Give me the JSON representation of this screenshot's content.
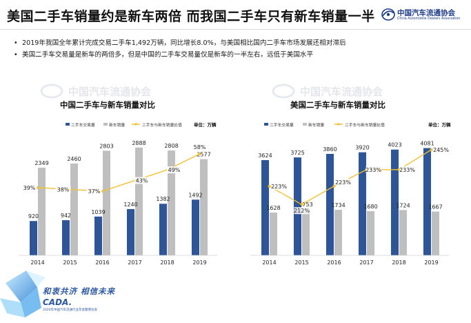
{
  "header": {
    "title": "美国二手车销量约是新车两倍 而我国二手车只有新车销量一半",
    "logo_text": "中国汽车流通协会",
    "logo_subtext": "China Automobile Dealers Association"
  },
  "bullets": [
    "2019年我国全年累计完成交易二手车1,492万辆，同比增长8.0%，与美国相比国内二手车市场发展还相对滞后",
    "美国二手车交易量是新车的两倍多，但是中国的二手车交易量仅是新车的一半左右，远低于美国水平"
  ],
  "watermark": {
    "text": "中国汽车流通协会",
    "subtext": "China Automobile Dealers Association"
  },
  "footer": {
    "slogan": "和衷共济 相信未来",
    "brand": "CADA.",
    "event": "2020年中国汽车流通行业年会暨博览会"
  },
  "colors": {
    "used": "#2e5597",
    "new": "#bfbfbf",
    "ratio": "#f0c030",
    "accent_footer": "#2b57a0"
  },
  "chart_data": [
    {
      "type": "bar",
      "title": "中国二手车与新车销量对比",
      "unit_label": "单位：万辆",
      "legend_position": "top",
      "categories": [
        "2014",
        "2015",
        "2016",
        "2017",
        "2018",
        "2019"
      ],
      "series": [
        {
          "name": "二手车交易量",
          "kind": "bar",
          "values": [
            920,
            942,
            1039,
            1240,
            1382,
            1492
          ],
          "labels": [
            "920",
            "942",
            "1039",
            "1240",
            "1382",
            "1492"
          ]
        },
        {
          "name": "新车销量",
          "kind": "bar",
          "values": [
            2349,
            2460,
            2803,
            2888,
            2808,
            2577
          ],
          "labels": [
            "2349",
            "2460",
            "2803",
            "2888",
            "2808",
            "2577"
          ]
        },
        {
          "name": "二手车与新车销量比值",
          "kind": "line",
          "values": [
            39,
            38,
            37,
            43,
            49,
            58
          ],
          "labels": [
            "39%",
            "38%",
            "37%",
            "43%",
            "49%",
            "58%"
          ]
        }
      ],
      "grid": false
    },
    {
      "type": "bar",
      "title": "美国二手车与新车销量对比",
      "unit_label": "单位：万辆",
      "legend_position": "top",
      "categories": [
        "2014",
        "2015",
        "2016",
        "2017",
        "2018",
        "2019"
      ],
      "series": [
        {
          "name": "二手车交易量",
          "kind": "bar",
          "values": [
            3624,
            3725,
            3860,
            3920,
            4023,
            4081
          ],
          "labels": [
            "3624",
            "3725",
            "3860",
            "3920",
            "4023",
            "4081"
          ]
        },
        {
          "name": "新车销量",
          "kind": "bar",
          "values": [
            1628,
            1753,
            1734,
            1680,
            1724,
            1667
          ],
          "labels": [
            "1628",
            "1753",
            "1734",
            "1680",
            "1724",
            "1667"
          ]
        },
        {
          "name": "二手车与新车销量比值",
          "kind": "line",
          "values": [
            223,
            212,
            223,
            233,
            233,
            245
          ],
          "labels": [
            "223%",
            "212%",
            "223%",
            "233%",
            "233%",
            "245%"
          ]
        }
      ],
      "grid": false
    }
  ]
}
